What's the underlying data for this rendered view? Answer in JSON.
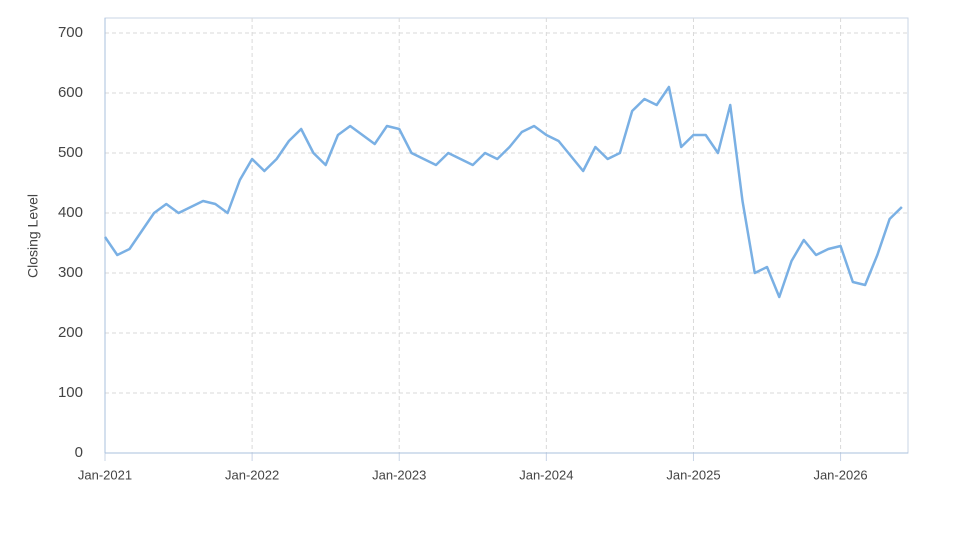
{
  "chart_data": {
    "type": "line",
    "y_label": "Closing Level",
    "x": [
      "Jan-2021",
      "Feb-2021",
      "Mar-2021",
      "Apr-2021",
      "May-2021",
      "Jun-2021",
      "Jul-2021",
      "Aug-2021",
      "Sep-2021",
      "Oct-2021",
      "Nov-2021",
      "Dec-2021",
      "Jan-2022",
      "Feb-2022",
      "Mar-2022",
      "Apr-2022",
      "May-2022",
      "Jun-2022",
      "Jul-2022",
      "Aug-2022",
      "Sep-2022",
      "Oct-2022",
      "Nov-2022",
      "Dec-2022",
      "Jan-2023",
      "Feb-2023",
      "Mar-2023",
      "Apr-2023",
      "May-2023",
      "Jun-2023",
      "Jul-2023",
      "Aug-2023",
      "Sep-2023",
      "Oct-2023",
      "Nov-2023",
      "Dec-2023",
      "Jan-2024",
      "Feb-2024",
      "Mar-2024",
      "Apr-2024",
      "May-2024",
      "Jun-2024",
      "Jul-2024",
      "Aug-2024",
      "Sep-2024",
      "Oct-2024",
      "Nov-2024",
      "Dec-2024",
      "Jan-2025",
      "Feb-2025",
      "Mar-2025",
      "Apr-2025",
      "May-2025",
      "Jun-2025",
      "Jul-2025",
      "Aug-2025",
      "Sep-2025",
      "Oct-2025",
      "Nov-2025",
      "Dec-2025",
      "Jan-2026",
      "Feb-2026",
      "Mar-2026",
      "Apr-2026",
      "May-2026",
      "Jun-2026"
    ],
    "series": [
      {
        "name": "Closing Level",
        "color": "#7ab0e4",
        "values": [
          360,
          330,
          340,
          370,
          400,
          415,
          400,
          410,
          420,
          415,
          400,
          455,
          490,
          470,
          490,
          520,
          540,
          500,
          480,
          530,
          545,
          530,
          515,
          545,
          540,
          500,
          490,
          480,
          500,
          490,
          480,
          500,
          490,
          510,
          535,
          545,
          530,
          520,
          495,
          470,
          510,
          490,
          500,
          570,
          590,
          580,
          610,
          510,
          530,
          530,
          500,
          580,
          420,
          300,
          310,
          260,
          320,
          355,
          330,
          340,
          345,
          285,
          280,
          330,
          390,
          410
        ]
      }
    ],
    "xticks": [
      "Jan-2021",
      "Jan-2022",
      "Jan-2023",
      "Jan-2024",
      "Jan-2025",
      "Jan-2026"
    ],
    "ylim": [
      0,
      725
    ],
    "yticks": [
      0,
      100,
      200,
      300,
      400,
      500,
      600,
      700
    ],
    "grid": true
  }
}
